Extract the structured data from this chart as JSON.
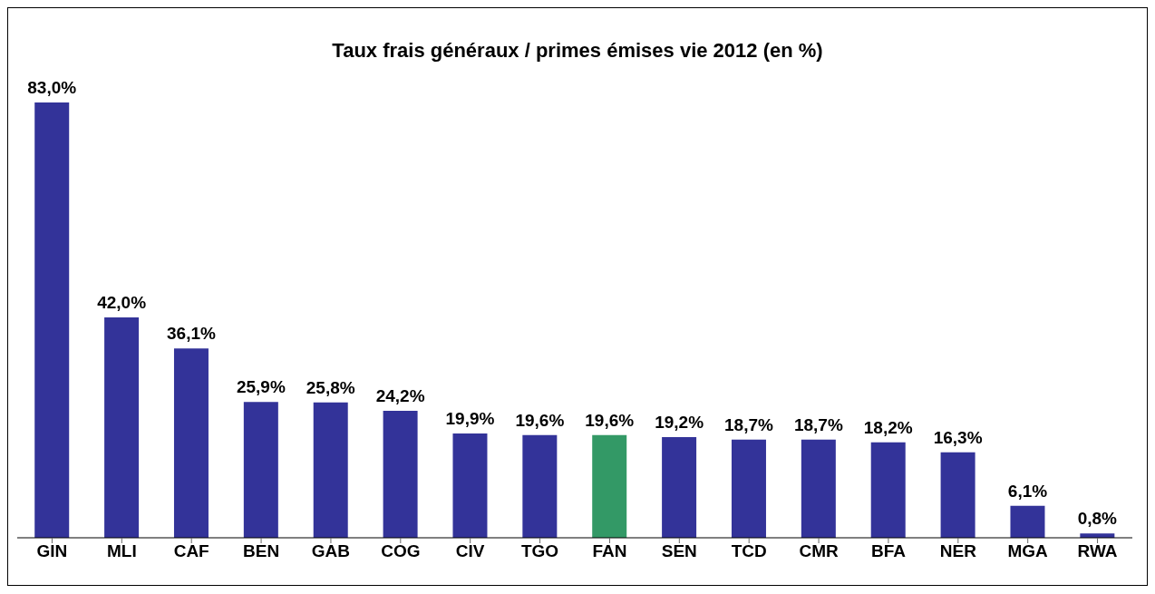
{
  "chart_data": {
    "type": "bar",
    "title": "Taux frais généraux / primes émises vie 2012 (en %)",
    "categories": [
      "GIN",
      "MLI",
      "CAF",
      "BEN",
      "GAB",
      "COG",
      "CIV",
      "TGO",
      "FAN",
      "SEN",
      "TCD",
      "CMR",
      "BFA",
      "NER",
      "MGA",
      "RWA"
    ],
    "values": [
      83.0,
      42.0,
      36.1,
      25.9,
      25.8,
      24.2,
      19.9,
      19.6,
      19.6,
      19.2,
      18.7,
      18.7,
      18.2,
      16.3,
      6.1,
      0.8
    ],
    "colors": [
      "#333399",
      "#333399",
      "#333399",
      "#333399",
      "#333399",
      "#333399",
      "#333399",
      "#333399",
      "#339966",
      "#333399",
      "#333399",
      "#333399",
      "#333399",
      "#333399",
      "#333399",
      "#333399"
    ],
    "value_labels": [
      "83,0%",
      "42,0%",
      "36,1%",
      "25,9%",
      "25,8%",
      "24,2%",
      "19,9%",
      "19,6%",
      "19,6%",
      "19,2%",
      "18,7%",
      "18,7%",
      "18,2%",
      "16,3%",
      "6,1%",
      "0,8%"
    ],
    "tick_labels": "x",
    "grid": false,
    "legend": false
  }
}
